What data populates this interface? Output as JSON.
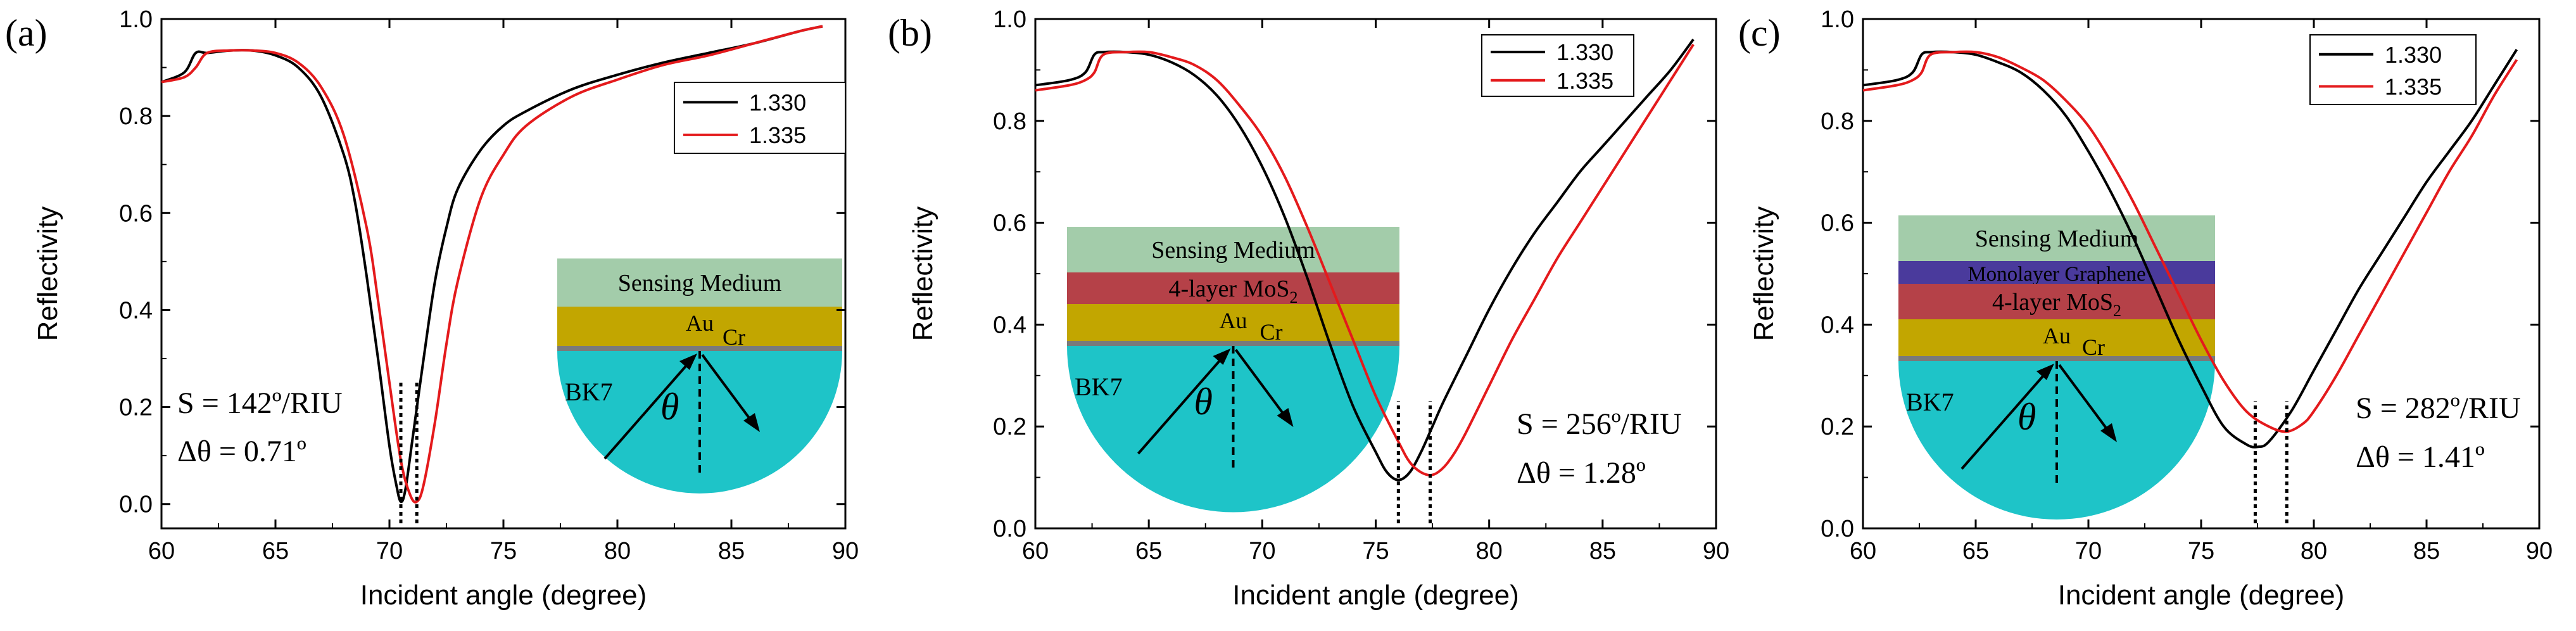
{
  "chart_data": [
    {
      "panel_label": "(a)",
      "type": "line",
      "xlabel": "Incident angle (degree)",
      "ylabel": "Reflectivity",
      "xlim": [
        60,
        90
      ],
      "ylim": [
        -0.05,
        1.0
      ],
      "xticks": [
        "60",
        "65",
        "70",
        "75",
        "80",
        "85",
        "90"
      ],
      "yticks": [
        "0.0",
        "0.2",
        "0.4",
        "0.6",
        "0.8",
        "1.0"
      ],
      "legend": [
        "1.330",
        "1.335"
      ],
      "series": [
        {
          "name": "1.330",
          "color": "#000000",
          "x": [
            60,
            61,
            61.5,
            62,
            63,
            64,
            65,
            66,
            67,
            68,
            68.5,
            69,
            69.5,
            70,
            70.3,
            70.5,
            70.7,
            71,
            71.5,
            72,
            72.5,
            73,
            74,
            75,
            76,
            78,
            80,
            82,
            84,
            86,
            88,
            89
          ],
          "y": [
            0.87,
            0.89,
            0.93,
            0.93,
            0.935,
            0.935,
            0.925,
            0.9,
            0.84,
            0.72,
            0.62,
            0.47,
            0.3,
            0.12,
            0.04,
            0.005,
            0.03,
            0.13,
            0.3,
            0.46,
            0.57,
            0.65,
            0.73,
            0.78,
            0.81,
            0.855,
            0.885,
            0.91,
            0.93,
            0.95,
            0.975,
            0.985
          ]
        },
        {
          "name": "1.335",
          "color": "#e41a1c",
          "x": [
            60,
            61,
            61.5,
            62,
            63,
            64,
            65,
            66,
            67,
            68,
            69,
            69.5,
            70,
            70.5,
            70.9,
            71.2,
            71.5,
            72,
            72.5,
            73,
            74,
            75,
            76,
            78,
            80,
            82,
            84,
            86,
            88,
            89
          ],
          "y": [
            0.87,
            0.88,
            0.9,
            0.93,
            0.935,
            0.935,
            0.93,
            0.91,
            0.86,
            0.76,
            0.57,
            0.42,
            0.25,
            0.09,
            0.02,
            0.005,
            0.04,
            0.17,
            0.33,
            0.46,
            0.63,
            0.72,
            0.78,
            0.84,
            0.875,
            0.905,
            0.925,
            0.95,
            0.975,
            0.985
          ]
        }
      ],
      "dip_markers": [
        70.5,
        71.2
      ],
      "annotation": {
        "s_value": "S = 142º/RIU",
        "dtheta": "Δθ = 0.71º"
      },
      "inset_layers": [
        "Sensing Medium",
        "Au"
      ],
      "inset_labels": {
        "prism": "BK7",
        "cr": "Cr",
        "theta": "θ"
      }
    },
    {
      "panel_label": "(b)",
      "type": "line",
      "xlabel": "Incident angle (degree)",
      "ylabel": "Reflectivity",
      "xlim": [
        60,
        90
      ],
      "ylim": [
        0.0,
        1.0
      ],
      "xticks": [
        "60",
        "65",
        "70",
        "75",
        "80",
        "85",
        "90"
      ],
      "yticks": [
        "0.0",
        "0.2",
        "0.4",
        "0.6",
        "0.8",
        "1.0"
      ],
      "legend": [
        "1.330",
        "1.335"
      ],
      "series": [
        {
          "name": "1.330",
          "color": "#000000",
          "x": [
            60,
            61.5,
            62.2,
            62.6,
            63,
            64,
            65,
            66,
            67,
            68,
            69,
            70,
            71,
            72,
            73,
            74,
            75,
            75.5,
            76,
            76.5,
            77,
            77.5,
            78,
            79,
            80,
            81,
            82,
            83,
            84,
            85,
            86,
            87,
            88,
            89
          ],
          "y": [
            0.87,
            0.88,
            0.895,
            0.93,
            0.935,
            0.935,
            0.93,
            0.915,
            0.89,
            0.85,
            0.79,
            0.71,
            0.61,
            0.49,
            0.36,
            0.24,
            0.15,
            0.11,
            0.095,
            0.11,
            0.15,
            0.2,
            0.25,
            0.34,
            0.43,
            0.51,
            0.58,
            0.64,
            0.7,
            0.75,
            0.8,
            0.85,
            0.9,
            0.96
          ]
        },
        {
          "name": "1.335",
          "color": "#e41a1c",
          "x": [
            60,
            61.5,
            62.2,
            62.6,
            63,
            64,
            65,
            66,
            67,
            68,
            69,
            70,
            71,
            72,
            73,
            74,
            75,
            76,
            76.5,
            77,
            77.5,
            78,
            78.5,
            79,
            80,
            81,
            82,
            83,
            84,
            85,
            86,
            87,
            88,
            89
          ],
          "y": [
            0.86,
            0.87,
            0.88,
            0.895,
            0.93,
            0.935,
            0.935,
            0.925,
            0.91,
            0.88,
            0.83,
            0.77,
            0.69,
            0.59,
            0.48,
            0.37,
            0.26,
            0.17,
            0.13,
            0.11,
            0.105,
            0.12,
            0.15,
            0.19,
            0.28,
            0.37,
            0.45,
            0.53,
            0.6,
            0.67,
            0.74,
            0.81,
            0.88,
            0.95
          ]
        }
      ],
      "dip_markers": [
        76.0,
        77.4
      ],
      "annotation": {
        "s_value": "S = 256º/RIU",
        "dtheta": "Δθ = 1.28º"
      },
      "inset_layers": [
        "Sensing Medium",
        "4-layer MoS",
        "Au"
      ],
      "inset_labels": {
        "prism": "BK7",
        "cr": "Cr",
        "theta": "θ",
        "subscript": "2"
      }
    },
    {
      "panel_label": "(c)",
      "type": "line",
      "xlabel": "Incident angle (degree)",
      "ylabel": "Reflectivity",
      "xlim": [
        60,
        90
      ],
      "ylim": [
        0.0,
        1.0
      ],
      "xticks": [
        "60",
        "65",
        "70",
        "75",
        "80",
        "85",
        "90"
      ],
      "yticks": [
        "0.0",
        "0.2",
        "0.4",
        "0.6",
        "0.8",
        "1.0"
      ],
      "legend": [
        "1.330",
        "1.335"
      ],
      "series": [
        {
          "name": "1.330",
          "color": "#000000",
          "x": [
            60,
            61.5,
            62.2,
            62.6,
            63,
            64,
            65,
            66,
            67,
            68,
            69,
            70,
            71,
            72,
            73,
            74,
            75,
            76,
            77,
            77.5,
            78,
            79,
            80,
            81,
            82,
            83,
            84,
            85,
            86,
            87,
            88,
            89
          ],
          "y": [
            0.87,
            0.88,
            0.895,
            0.93,
            0.935,
            0.935,
            0.93,
            0.915,
            0.895,
            0.86,
            0.81,
            0.74,
            0.66,
            0.57,
            0.47,
            0.37,
            0.28,
            0.2,
            0.165,
            0.16,
            0.17,
            0.23,
            0.31,
            0.39,
            0.47,
            0.54,
            0.61,
            0.68,
            0.74,
            0.8,
            0.87,
            0.94
          ]
        },
        {
          "name": "1.335",
          "color": "#e41a1c",
          "x": [
            60,
            61.5,
            62.2,
            62.6,
            63,
            64,
            65,
            66,
            67,
            68,
            69,
            70,
            71,
            72,
            73,
            74,
            75,
            76,
            77,
            78,
            78.8,
            79.5,
            80,
            81,
            82,
            83,
            84,
            85,
            86,
            87,
            88,
            89
          ],
          "y": [
            0.86,
            0.87,
            0.88,
            0.895,
            0.93,
            0.935,
            0.935,
            0.925,
            0.905,
            0.88,
            0.84,
            0.79,
            0.72,
            0.64,
            0.55,
            0.46,
            0.37,
            0.29,
            0.23,
            0.2,
            0.19,
            0.205,
            0.23,
            0.3,
            0.38,
            0.46,
            0.54,
            0.62,
            0.7,
            0.77,
            0.85,
            0.92
          ]
        }
      ],
      "dip_markers": [
        77.4,
        78.8
      ],
      "annotation": {
        "s_value": "S = 282º/RIU",
        "dtheta": "Δθ = 1.41º"
      },
      "inset_layers": [
        "Sensing Medium",
        "Monolayer Graphene",
        "4-layer MoS",
        "Au"
      ],
      "inset_labels": {
        "prism": "BK7",
        "cr": "Cr",
        "theta": "θ",
        "subscript": "2"
      }
    }
  ],
  "colors": {
    "prism": "#1ec4c8",
    "sensing_medium": "#a3ccaa",
    "au": "#c2a600",
    "mos2": "#b54148",
    "graphene": "#4a3a9c",
    "cr": "#7a7a7a"
  }
}
